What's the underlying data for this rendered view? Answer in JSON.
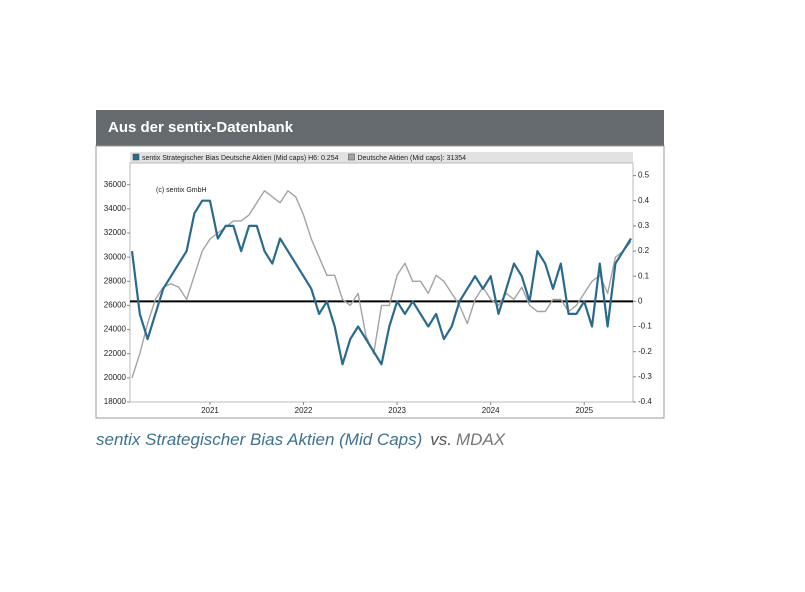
{
  "header": {
    "title": "Aus der sentix-Datenbank"
  },
  "chart_data": {
    "type": "line",
    "annotation": "(c) sentix GmbH",
    "categories": [
      null,
      null,
      null,
      null,
      null,
      null,
      null,
      null,
      null,
      null,
      "2021",
      null,
      null,
      null,
      null,
      null,
      null,
      null,
      null,
      null,
      null,
      null,
      "2022",
      null,
      null,
      null,
      null,
      null,
      null,
      null,
      null,
      null,
      null,
      null,
      "2023",
      null,
      null,
      null,
      null,
      null,
      null,
      null,
      null,
      null,
      null,
      null,
      "2024",
      null,
      null,
      null,
      null,
      null,
      null,
      null,
      null,
      null,
      null,
      null,
      "2025",
      null,
      null,
      null,
      null,
      null,
      null
    ],
    "series": [
      {
        "name": "sentix Strategischer Bias Deutsche Aktien (Mid caps) H6:  0.254",
        "color": "#2a6a8c",
        "axis": "y2",
        "values": [
          0.2,
          -0.05,
          -0.15,
          -0.05,
          0.05,
          0.1,
          0.15,
          0.2,
          0.35,
          0.4,
          0.4,
          0.25,
          0.3,
          0.3,
          0.2,
          0.3,
          0.3,
          0.2,
          0.15,
          0.25,
          0.2,
          0.15,
          0.1,
          0.05,
          -0.05,
          0.0,
          -0.1,
          -0.25,
          -0.15,
          -0.1,
          -0.15,
          -0.2,
          -0.25,
          -0.1,
          0.0,
          -0.05,
          0.0,
          -0.05,
          -0.1,
          -0.05,
          -0.15,
          -0.1,
          0.0,
          0.05,
          0.1,
          0.05,
          0.1,
          -0.05,
          0.05,
          0.15,
          0.1,
          0.0,
          0.2,
          0.15,
          0.05,
          0.15,
          -0.05,
          -0.05,
          0.0,
          -0.1,
          0.15,
          -0.1,
          0.15,
          0.2,
          0.25
        ]
      },
      {
        "name": "Deutsche Aktien (Mid caps): 31354",
        "color": "#a3a3a3",
        "values": [
          20000,
          22000,
          24500,
          26500,
          27500,
          27800,
          27500,
          26500,
          28500,
          30500,
          31500,
          32000,
          32500,
          33000,
          33000,
          33500,
          34500,
          35500,
          35000,
          34500,
          35500,
          35000,
          33500,
          31500,
          30000,
          28500,
          28500,
          26500,
          26000,
          27000,
          23500,
          22000,
          26000,
          26000,
          28500,
          29500,
          28000,
          28000,
          27000,
          28500,
          28000,
          27000,
          26000,
          24500,
          26500,
          27500,
          26500,
          26000,
          27000,
          26500,
          27500,
          26000,
          25500,
          25500,
          26500,
          26500,
          25500,
          26000,
          27000,
          28000,
          28500,
          27000,
          30000,
          30500,
          31300
        ]
      }
    ],
    "ylim": [
      18000,
      37800
    ],
    "yticks": [
      18000,
      20000,
      22000,
      24000,
      26000,
      28000,
      30000,
      32000,
      34000,
      36000
    ],
    "y2lim": [
      -0.4,
      0.55
    ],
    "y2ticks": [
      -0.4,
      -0.3,
      -0.2,
      -0.1,
      0,
      0.1,
      0.2,
      0.3,
      0.4,
      0.5
    ],
    "reference_line": {
      "axis": "y2",
      "value": 0
    }
  },
  "caption": {
    "main": "sentix Strategischer Bias Aktien (Mid Caps)",
    "connector": "vs.",
    "compare": "MDAX"
  }
}
